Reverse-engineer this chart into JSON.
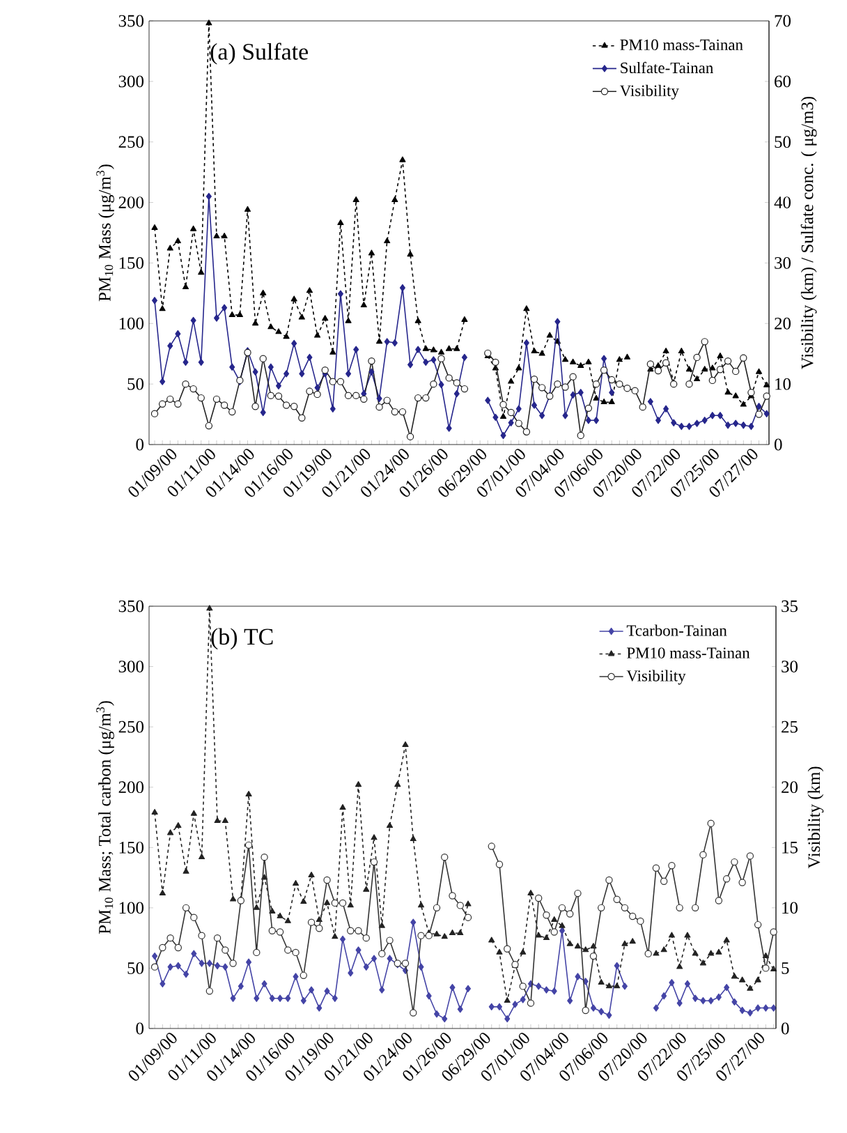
{
  "chart_data": [
    {
      "type": "line",
      "title": "(a) Sulfate",
      "ylabel": "PM$_{10}$ Mass (μg/m$^{3}$)",
      "y2label": "Visibility (km) / Sulfate conc. ( μg/m3)",
      "categories": [
        null,
        null,
        "01/09/00",
        null,
        null,
        null,
        null,
        "01/11/00",
        null,
        null,
        null,
        null,
        "01/14/00",
        null,
        null,
        null,
        null,
        "01/16/00",
        null,
        null,
        null,
        null,
        "01/19/00",
        null,
        null,
        null,
        null,
        "01/21/00",
        null,
        null,
        null,
        null,
        "01/24/00",
        null,
        null,
        null,
        null,
        "01/26/00",
        null,
        null,
        null,
        null,
        "06/29/00",
        null,
        null,
        null,
        null,
        "07/01/00",
        null,
        null,
        null,
        null,
        "07/04/00",
        null,
        null,
        null,
        null,
        "07/06/00",
        null,
        null,
        null,
        null,
        "07/20/00",
        null,
        null,
        null,
        null,
        "07/22/00",
        null,
        null,
        null,
        null,
        "07/25/00",
        null,
        null,
        null,
        null,
        "07/27/00",
        null,
        null
      ],
      "ylim": [
        0,
        350
      ],
      "yticks": [
        0,
        50,
        100,
        150,
        200,
        250,
        300,
        350
      ],
      "y2lim": [
        0,
        70
      ],
      "y2ticks": [
        0,
        10,
        20,
        30,
        40,
        50,
        60,
        70
      ],
      "legend": "top right",
      "grid": false,
      "series": [
        {
          "name": "PM10 mass-Tainan",
          "color": "#000000",
          "marker": "triangle",
          "line_style": "dashed",
          "values": [
            179,
            112,
            162,
            168,
            130,
            178,
            142,
            348,
            172,
            172,
            107,
            107,
            194,
            100,
            125,
            97,
            93,
            89,
            120,
            105,
            127,
            90,
            104,
            76,
            183,
            102,
            202,
            115,
            158,
            85,
            168,
            202,
            235,
            157,
            102,
            79,
            78,
            76,
            79,
            79,
            103,
            null,
            null,
            73,
            63,
            23,
            52,
            63,
            112,
            77,
            75,
            90,
            85,
            70,
            68,
            65,
            68,
            38,
            35,
            35,
            70,
            72,
            null,
            null,
            62,
            65,
            77,
            51,
            77,
            62,
            54,
            62,
            63,
            73,
            43,
            40,
            33,
            40,
            60,
            49
          ]
        },
        {
          "name": "Sulfate-Tainan",
          "color": "#26268c",
          "marker": "diamond",
          "line_style": "solid",
          "axis": "y2",
          "values": [
            23.8,
            10.4,
            16.3,
            18.3,
            13.6,
            20.5,
            13.6,
            41,
            20.9,
            22.6,
            12.8,
            10.4,
            15.5,
            12,
            5.3,
            12.8,
            9.7,
            11.7,
            16.7,
            11.7,
            14.4,
            9.4,
            11.7,
            5.9,
            24.9,
            11.7,
            15.7,
            8.4,
            12,
            7.6,
            17,
            16.8,
            25.9,
            13.2,
            15.7,
            13.6,
            14,
            9.9,
            2.7,
            8.4,
            14.4,
            null,
            null,
            7.3,
            4.5,
            1.5,
            3.6,
            5.9,
            16.8,
            6.5,
            4.8,
            8.1,
            20.3,
            4.8,
            8.2,
            8.6,
            4,
            4,
            14.2,
            8.6,
            null,
            null,
            null,
            null,
            7.1,
            4,
            5.9,
            3.6,
            3,
            3,
            3.5,
            4,
            4.8,
            4.8,
            3.2,
            3.5,
            3.2,
            3,
            6.3,
            5.1
          ]
        },
        {
          "name": "Visibility",
          "color": "#222222",
          "marker": "circle",
          "line_style": "solid",
          "axis": "y2",
          "values": [
            5.1,
            6.7,
            7.5,
            6.7,
            10,
            9.2,
            7.7,
            3.1,
            7.5,
            6.5,
            5.4,
            10.6,
            15.2,
            6.3,
            14.2,
            8.1,
            8,
            6.5,
            6.3,
            4.4,
            8.8,
            8.3,
            12.3,
            10.4,
            10.4,
            8.1,
            8.1,
            7.5,
            13.8,
            6.2,
            7.3,
            5.4,
            5.4,
            1.3,
            7.7,
            7.7,
            10,
            14.2,
            11,
            10.2,
            9.2,
            null,
            null,
            15.1,
            13.6,
            6.6,
            5.3,
            3.5,
            2.1,
            10.8,
            9.4,
            8,
            10,
            9.5,
            11.2,
            1.5,
            6,
            10,
            12.3,
            10.7,
            10,
            9.3,
            8.9,
            6.2,
            13.3,
            12.2,
            13.5,
            10,
            null,
            10,
            14.4,
            17,
            10.6,
            12.4,
            13.8,
            12.1,
            14.3,
            8.6,
            5,
            8
          ]
        }
      ]
    },
    {
      "type": "line",
      "title": "(b) TC",
      "ylabel": "PM$_{10}$ Mass; Total carbon (μg/m$^{3}$)",
      "y2label": "Visibility (km)",
      "categories": [
        null,
        null,
        "01/09/00",
        null,
        null,
        null,
        null,
        "01/11/00",
        null,
        null,
        null,
        null,
        "01/14/00",
        null,
        null,
        null,
        null,
        "01/16/00",
        null,
        null,
        null,
        null,
        "01/19/00",
        null,
        null,
        null,
        null,
        "01/21/00",
        null,
        null,
        null,
        null,
        "01/24/00",
        null,
        null,
        null,
        null,
        "01/26/00",
        null,
        null,
        null,
        null,
        "06/29/00",
        null,
        null,
        null,
        null,
        "07/01/00",
        null,
        null,
        null,
        null,
        "07/04/00",
        null,
        null,
        null,
        null,
        "07/06/00",
        null,
        null,
        null,
        null,
        "07/20/00",
        null,
        null,
        null,
        null,
        "07/22/00",
        null,
        null,
        null,
        null,
        "07/25/00",
        null,
        null,
        null,
        null,
        "07/27/00",
        null,
        null
      ],
      "ylim": [
        0,
        350
      ],
      "yticks": [
        0,
        50,
        100,
        150,
        200,
        250,
        300,
        350
      ],
      "y2lim": [
        0,
        35
      ],
      "y2ticks": [
        0,
        5,
        10,
        15,
        20,
        25,
        30,
        35
      ],
      "legend": "top right",
      "grid": false,
      "series": [
        {
          "name": "Tcarbon-Tainan",
          "color": "#4444a6",
          "marker": "diamond",
          "line_style": "solid",
          "values": [
            60,
            37,
            51,
            52,
            45,
            62,
            54,
            54,
            52,
            51,
            25,
            35,
            55,
            25,
            37,
            25,
            25,
            25,
            43,
            23,
            32,
            17,
            31,
            25,
            74,
            46,
            65,
            51,
            58,
            32,
            58,
            53,
            48,
            88,
            51,
            27,
            12,
            8,
            34,
            16,
            33,
            null,
            null,
            18,
            18,
            8,
            20,
            24,
            37,
            35,
            32,
            31,
            81,
            23,
            43,
            39,
            17,
            14,
            11,
            52,
            35,
            null,
            null,
            null,
            17,
            27,
            38,
            21,
            37,
            25,
            23,
            23,
            26,
            34,
            22,
            15,
            13,
            17,
            17,
            17
          ]
        },
        {
          "name": "PM10 mass-Tainan",
          "color": "#222222",
          "marker": "triangle",
          "line_style": "dashed",
          "values": [
            179,
            112,
            162,
            168,
            130,
            178,
            142,
            348,
            172,
            172,
            107,
            107,
            194,
            100,
            125,
            97,
            93,
            89,
            120,
            105,
            127,
            90,
            104,
            76,
            183,
            102,
            202,
            115,
            158,
            85,
            168,
            202,
            235,
            157,
            102,
            79,
            78,
            76,
            79,
            79,
            103,
            null,
            null,
            73,
            63,
            23,
            52,
            63,
            112,
            77,
            75,
            90,
            85,
            70,
            68,
            65,
            68,
            38,
            35,
            35,
            70,
            72,
            null,
            null,
            62,
            65,
            77,
            51,
            77,
            62,
            54,
            62,
            63,
            73,
            43,
            40,
            33,
            40,
            60,
            49
          ]
        },
        {
          "name": "Visibility",
          "color": "#333333",
          "marker": "circle",
          "line_style": "solid",
          "axis": "y2",
          "values": [
            5.1,
            6.7,
            7.5,
            6.7,
            10,
            9.2,
            7.7,
            3.1,
            7.5,
            6.5,
            5.4,
            10.6,
            15.2,
            6.3,
            14.2,
            8.1,
            8,
            6.5,
            6.3,
            4.4,
            8.8,
            8.3,
            12.3,
            10.4,
            10.4,
            8.1,
            8.1,
            7.5,
            13.8,
            6.2,
            7.3,
            5.4,
            5.4,
            1.3,
            7.7,
            7.7,
            10,
            14.2,
            11,
            10.2,
            9.2,
            null,
            null,
            15.1,
            13.6,
            6.6,
            5.3,
            3.5,
            2.1,
            10.8,
            9.4,
            8,
            10,
            9.5,
            11.2,
            1.5,
            6,
            10,
            12.3,
            10.7,
            10,
            9.3,
            8.9,
            6.2,
            13.3,
            12.2,
            13.5,
            10,
            null,
            10,
            14.4,
            17,
            10.6,
            12.4,
            13.8,
            12.1,
            14.3,
            8.6,
            5,
            8
          ]
        }
      ]
    }
  ]
}
